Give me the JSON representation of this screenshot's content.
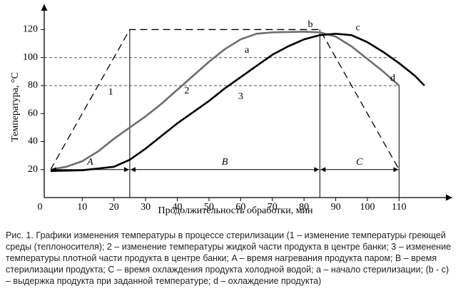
{
  "chart_data": {
    "type": "line",
    "ylabel": "Температура, °C",
    "xlabel": "Продолжительность обработки, мин",
    "xlim": [
      -2,
      125
    ],
    "ylim": [
      0,
      135
    ],
    "xticks": [
      0,
      10,
      20,
      30,
      40,
      50,
      60,
      70,
      80,
      90,
      100,
      110
    ],
    "yticks": [
      20,
      40,
      60,
      80,
      100,
      120
    ],
    "hlines": [
      100,
      80
    ],
    "series": [
      {
        "name": "1",
        "color": "#000000",
        "dash": true,
        "x": [
          0,
          25,
          85,
          110
        ],
        "values": [
          20,
          120,
          120,
          20
        ]
      },
      {
        "name": "2",
        "color": "#6d6d6d",
        "dash": false,
        "x": [
          0,
          5,
          10,
          15,
          20,
          25,
          30,
          35,
          40,
          45,
          50,
          55,
          60,
          65,
          70,
          80,
          85,
          90,
          95,
          100,
          105,
          110
        ],
        "values": [
          20,
          22,
          26,
          33,
          42,
          50,
          58,
          67,
          77,
          87,
          97,
          106,
          113,
          117,
          118,
          118.5,
          118,
          115,
          108,
          99,
          90,
          80
        ]
      },
      {
        "name": "3",
        "color": "#000000",
        "dash": false,
        "x": [
          0,
          10,
          20,
          25,
          30,
          35,
          40,
          45,
          50,
          55,
          60,
          65,
          70,
          75,
          80,
          85,
          90,
          95,
          100,
          105,
          110,
          115,
          118
        ],
        "values": [
          19,
          19.5,
          22,
          27,
          35,
          44,
          53,
          61,
          69,
          78,
          86,
          94,
          102,
          108,
          113,
          116,
          117,
          116,
          111,
          104,
          96,
          87,
          80
        ]
      }
    ],
    "points": [
      "a",
      "b",
      "c",
      "d"
    ],
    "intervals": [
      {
        "label": "A",
        "from": 0,
        "to": 25
      },
      {
        "label": "B",
        "from": 25,
        "to": 85
      },
      {
        "label": "C",
        "from": 85,
        "to": 110
      }
    ],
    "caption": "Рис. 1. Графики изменения температуры в процессе стерилизации (1 – изменение температуры греющей среды (теплоносителя); 2 – изменение температуры жидкой части продукта в центре банки; 3 – изменение температуры плотной части продукта в центре банки; A – время нагревания продукта паром; B – время стерилизации продукта; C – время охлаждения продукта холодной водой; a – начало стерилизации; (b - c) – выдержка продукта при заданной температуре; d – охлаждение продукта)"
  }
}
